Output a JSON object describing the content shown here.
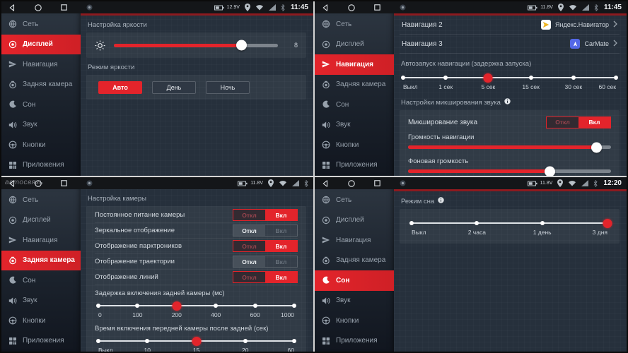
{
  "colors": {
    "accent": "#e3242b",
    "statusbar_bg": "#141619",
    "content_bg": "#26303c"
  },
  "sidebar_items": [
    {
      "icon": "network-icon",
      "key": "network",
      "label": "Сеть"
    },
    {
      "icon": "display-icon",
      "key": "display",
      "label": "Дисплей"
    },
    {
      "icon": "navigation-icon",
      "key": "navigation",
      "label": "Навигация"
    },
    {
      "icon": "rear-camera-icon",
      "key": "rear-camera",
      "label": "Задняя камера"
    },
    {
      "icon": "sleep-icon",
      "key": "sleep",
      "label": "Сон"
    },
    {
      "icon": "sound-icon",
      "key": "sound",
      "label": "Звук"
    },
    {
      "icon": "buttons-icon",
      "key": "buttons",
      "label": "Кнопки"
    },
    {
      "icon": "apps-icon",
      "key": "apps",
      "label": "Приложения"
    }
  ],
  "screens": {
    "display": {
      "statusbar": {
        "voltage": "12.9V",
        "time": "11:45"
      },
      "active_item": "Дисплей",
      "brightness_section": {
        "title": "Настройка яркости",
        "value": "8",
        "percent": 78
      },
      "mode_section": {
        "title": "Режим яркости",
        "options": [
          "Авто",
          "День",
          "Ночь"
        ],
        "active": "Авто"
      }
    },
    "navigation": {
      "statusbar": {
        "voltage": "11.8V",
        "time": "11:45"
      },
      "active_item": "Навигация",
      "rows": [
        {
          "label": "Навигация 2",
          "value": "Яндекс.Навигатор"
        },
        {
          "label": "Навигация 3",
          "value": "CarMate"
        }
      ],
      "autostart": {
        "title": "Автозапуск навигации (задержка запуска)",
        "stops": [
          "Выкл",
          "1 сек",
          "5 сек",
          "15 сек",
          "30 сек",
          "60 сек"
        ],
        "active": 2
      },
      "mixing": {
        "title": "Настройки микширования звука",
        "toggle_label": "Микширование звука",
        "toggle": {
          "off": "Откл",
          "on": "Вкл",
          "state": "on"
        },
        "sliders": [
          {
            "label": "Громкость навигации",
            "percent": 93
          },
          {
            "label": "Фоновая громкость",
            "percent": 70
          }
        ]
      }
    },
    "camera": {
      "statusbar": {
        "voltage": "11.8V",
        "time": "",
        "watermark": "автосвязь"
      },
      "active_item": "Задняя камера",
      "title": "Настройка камеры",
      "toggle_off": "Откл",
      "toggle_on": "Вкл",
      "toggles": [
        {
          "label": "Постоянное питание камеры",
          "state": "on"
        },
        {
          "label": "Зеркальное отображение",
          "state": "off"
        },
        {
          "label": "Отображение парктроников",
          "state": "on"
        },
        {
          "label": "Отображение траектории",
          "state": "off"
        },
        {
          "label": "Отображение линий",
          "state": "on"
        }
      ],
      "sliders": [
        {
          "label": "Задержка включения задней камеры (мс)",
          "stops": [
            "0",
            "100",
            "200",
            "400",
            "600",
            "1000"
          ],
          "active": 2
        },
        {
          "label": "Время включения передней камеры после задней (сек)",
          "stops": [
            "Выкл",
            "10",
            "15",
            "20",
            "60"
          ],
          "active": 2
        }
      ]
    },
    "sleep": {
      "statusbar": {
        "voltage": "11.8V",
        "time": "12:20"
      },
      "active_item": "Сон",
      "title": "Режим сна",
      "slider": {
        "stops": [
          "Выкл",
          "2 часа",
          "1 день",
          "3 дня"
        ],
        "active": 3
      }
    }
  }
}
